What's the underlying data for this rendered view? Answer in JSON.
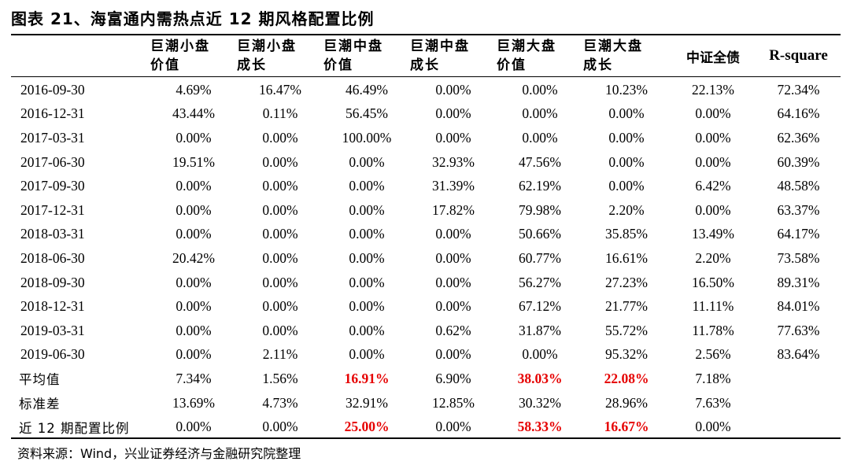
{
  "title": "图表 21、海富通内需热点近 12 期风格配置比例",
  "columns": [
    {
      "line1": "巨潮小盘",
      "line2": "价值"
    },
    {
      "line1": "巨潮小盘",
      "line2": "成长"
    },
    {
      "line1": "巨潮中盘",
      "line2": "价值"
    },
    {
      "line1": "巨潮中盘",
      "line2": "成长"
    },
    {
      "line1": "巨潮大盘",
      "line2": "价值"
    },
    {
      "line1": "巨潮大盘",
      "line2": "成长"
    },
    {
      "line1": "中证全债",
      "line2": ""
    },
    {
      "line1": "R-square",
      "line2": ""
    }
  ],
  "rows": [
    {
      "label": "2016-09-30",
      "values": [
        "4.69%",
        "16.47%",
        "46.49%",
        "0.00%",
        "0.00%",
        "10.23%",
        "22.13%",
        "72.34%"
      ]
    },
    {
      "label": "2016-12-31",
      "values": [
        "43.44%",
        "0.11%",
        "56.45%",
        "0.00%",
        "0.00%",
        "0.00%",
        "0.00%",
        "64.16%"
      ]
    },
    {
      "label": "2017-03-31",
      "values": [
        "0.00%",
        "0.00%",
        "100.00%",
        "0.00%",
        "0.00%",
        "0.00%",
        "0.00%",
        "62.36%"
      ]
    },
    {
      "label": "2017-06-30",
      "values": [
        "19.51%",
        "0.00%",
        "0.00%",
        "32.93%",
        "47.56%",
        "0.00%",
        "0.00%",
        "60.39%"
      ]
    },
    {
      "label": "2017-09-30",
      "values": [
        "0.00%",
        "0.00%",
        "0.00%",
        "31.39%",
        "62.19%",
        "0.00%",
        "6.42%",
        "48.58%"
      ]
    },
    {
      "label": "2017-12-31",
      "values": [
        "0.00%",
        "0.00%",
        "0.00%",
        "17.82%",
        "79.98%",
        "2.20%",
        "0.00%",
        "63.37%"
      ]
    },
    {
      "label": "2018-03-31",
      "values": [
        "0.00%",
        "0.00%",
        "0.00%",
        "0.00%",
        "50.66%",
        "35.85%",
        "13.49%",
        "64.17%"
      ]
    },
    {
      "label": "2018-06-30",
      "values": [
        "20.42%",
        "0.00%",
        "0.00%",
        "0.00%",
        "60.77%",
        "16.61%",
        "2.20%",
        "73.58%"
      ]
    },
    {
      "label": "2018-09-30",
      "values": [
        "0.00%",
        "0.00%",
        "0.00%",
        "0.00%",
        "56.27%",
        "27.23%",
        "16.50%",
        "89.31%"
      ]
    },
    {
      "label": "2018-12-31",
      "values": [
        "0.00%",
        "0.00%",
        "0.00%",
        "0.00%",
        "67.12%",
        "21.77%",
        "11.11%",
        "84.01%"
      ]
    },
    {
      "label": "2019-03-31",
      "values": [
        "0.00%",
        "0.00%",
        "0.00%",
        "0.62%",
        "31.87%",
        "55.72%",
        "11.78%",
        "77.63%"
      ]
    },
    {
      "label": "2019-06-30",
      "values": [
        "0.00%",
        "2.11%",
        "0.00%",
        "0.00%",
        "0.00%",
        "95.32%",
        "2.56%",
        "83.64%"
      ]
    }
  ],
  "summary": [
    {
      "label": "平均值",
      "values": [
        "7.34%",
        "1.56%",
        "16.91%",
        "6.90%",
        "38.03%",
        "22.08%",
        "7.18%",
        ""
      ]
    },
    {
      "label": "标准差",
      "values": [
        "13.69%",
        "4.73%",
        "32.91%",
        "12.85%",
        "30.32%",
        "28.96%",
        "7.63%",
        ""
      ]
    },
    {
      "label": "近 12 期配置比例",
      "values": [
        "0.00%",
        "0.00%",
        "25.00%",
        "0.00%",
        "58.33%",
        "16.67%",
        "0.00%",
        ""
      ]
    }
  ],
  "highlight_color": "#e60000",
  "source": "资料来源：Wind，兴业证券经济与金融研究院整理"
}
